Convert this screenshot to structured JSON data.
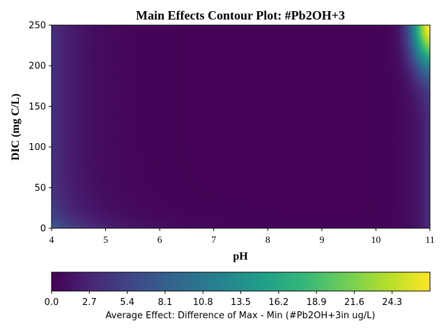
{
  "chart_data": {
    "type": "heatmap",
    "title": "Main Effects Contour Plot: #Pb2OH+3",
    "xlabel": "pH",
    "ylabel": "DIC (mg C/L)",
    "xlim": [
      4,
      11
    ],
    "ylim": [
      0,
      250
    ],
    "x_ticks": [
      "4",
      "5",
      "6",
      "7",
      "8",
      "9",
      "10",
      "11"
    ],
    "y_ticks": [
      "0",
      "50",
      "100",
      "150",
      "200",
      "250"
    ],
    "colorbar": {
      "label": "Average Effect: Difference of Max - Min (#Pb2OH+3in ug/L)",
      "range": [
        0,
        27
      ],
      "ticks": [
        "0.0",
        "2.7",
        "5.4",
        "8.1",
        "10.8",
        "13.5",
        "16.2",
        "18.9",
        "21.6",
        "24.3"
      ],
      "colormap": "viridis"
    },
    "features": [
      {
        "region": "pH 4-5.5, DIC 0-40",
        "value_range": [
          3,
          6
        ]
      },
      {
        "region": "pH 4-4.5, all DIC",
        "value_range": [
          2,
          4
        ]
      },
      {
        "region": "pH 5.5-10.5, DIC 20-250",
        "value_range": [
          0,
          0.5
        ]
      },
      {
        "region": "pH 10.7-11, DIC 0-250",
        "value_range": [
          1.5,
          5
        ]
      },
      {
        "region": "pH 10.9-11, DIC 220-250",
        "value_range": [
          15,
          27
        ]
      }
    ]
  },
  "colors": {
    "viridis": [
      "#440154",
      "#482878",
      "#3e4989",
      "#31688e",
      "#26828e",
      "#1f9e89",
      "#35b779",
      "#6ece58",
      "#b5de2b",
      "#fde725"
    ]
  }
}
